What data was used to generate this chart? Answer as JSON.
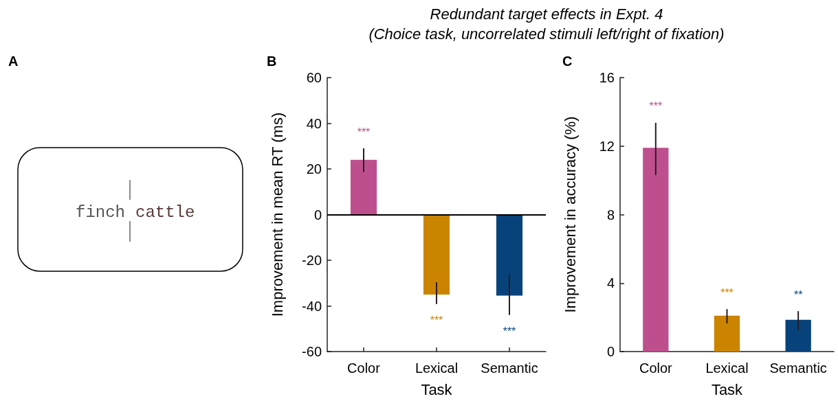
{
  "chart_data": [
    {
      "type": "other",
      "title": "A",
      "annotations": [
        "finch",
        "cattle"
      ]
    },
    {
      "type": "bar",
      "title": "Redundant target effects in Expt. 4\n(Choice task, uncorrelated stimuli left/right of fixation)",
      "subtitle": "B",
      "xlabel": "Task",
      "ylabel": "Improvement in mean RT (ms)",
      "categories": [
        "Color",
        "Lexical",
        "Semantic"
      ],
      "values": [
        24,
        -35,
        -35.5
      ],
      "colors": [
        "#be4f8f",
        "#cb8400",
        "#07437a"
      ],
      "errors": [
        [
          18.6,
          29
        ],
        [
          -39.2,
          -29.6
        ],
        [
          -44,
          -26.1
        ]
      ],
      "ylim": [
        -60,
        60
      ],
      "yticks": [
        -60,
        -40,
        -20,
        0,
        20,
        40,
        60
      ],
      "grid": false,
      "ref_lines": [
        {
          "axis": "y",
          "value": 0,
          "color": "#000000"
        }
      ],
      "annotations": [
        "***",
        "***",
        "***"
      ]
    },
    {
      "type": "bar",
      "subtitle": "C",
      "xlabel": "Task",
      "ylabel": "Improvement in accuracy (%)",
      "categories": [
        "Color",
        "Lexical",
        "Semantic"
      ],
      "values": [
        11.9,
        2.1,
        1.85
      ],
      "colors": [
        "#be4f8f",
        "#cb8400",
        "#07437a"
      ],
      "errors": [
        [
          10.3,
          13.36
        ],
        [
          1.65,
          2.48
        ],
        [
          1.24,
          2.36
        ]
      ],
      "ylim": [
        0,
        16
      ],
      "yticks": [
        0,
        4,
        8,
        12,
        16
      ],
      "grid": false,
      "annotations": [
        "***",
        "***",
        "**"
      ]
    }
  ]
}
